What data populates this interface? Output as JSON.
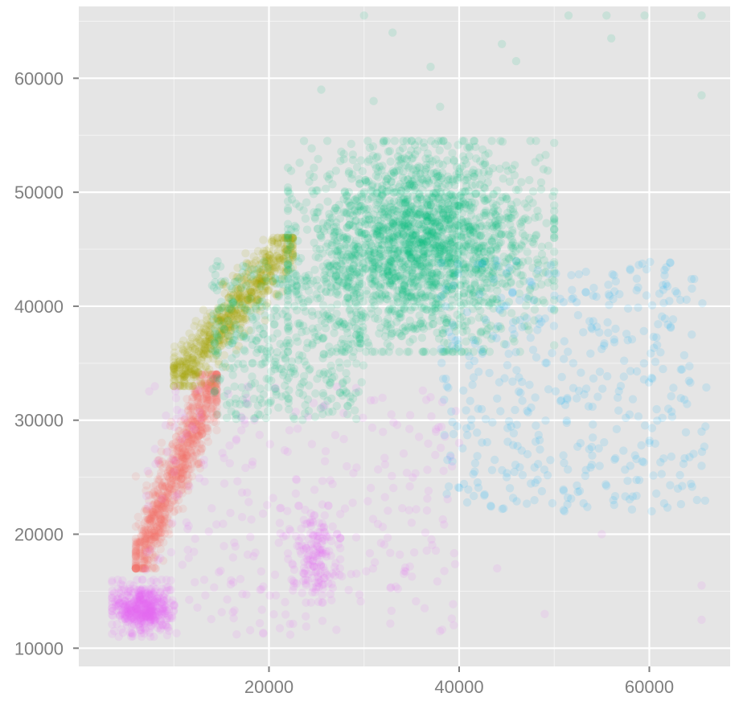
{
  "chart_data": {
    "type": "scatter",
    "title": "",
    "xlabel": "",
    "ylabel": "",
    "xlim": [
      0,
      68500
    ],
    "ylim": [
      8400,
      66300
    ],
    "x_ticks": [
      20000,
      40000,
      60000
    ],
    "x_tick_labels": [
      "20000",
      "40000",
      "60000"
    ],
    "y_ticks": [
      10000,
      20000,
      30000,
      40000,
      50000,
      60000
    ],
    "y_tick_labels": [
      "10000",
      "20000",
      "30000",
      "40000",
      "50000",
      "60000"
    ],
    "x_minor_grid": [
      10000,
      30000,
      50000
    ],
    "y_minor_grid": [
      15000,
      25000,
      35000,
      45000,
      55000,
      65000
    ],
    "grid": true,
    "legend": "none",
    "panel_background": "#e5e5e5",
    "grid_color": "#ffffff",
    "point_opacity": 0.12,
    "series": [
      {
        "color": "#F8766D",
        "clusters": [
          {
            "n": 900,
            "x_range": [
              6000,
              14500
            ],
            "y_range": [
              17000,
              34000
            ],
            "note_shape": "diagonal-band"
          }
        ],
        "points": [
          [
            8000,
            18000
          ],
          [
            9000,
            21000
          ],
          [
            10000,
            24000
          ],
          [
            11000,
            27000
          ],
          [
            12000,
            30000
          ],
          [
            13000,
            33000
          ],
          [
            9500,
            20000
          ],
          [
            11500,
            26000
          ],
          [
            10500,
            23000
          ],
          [
            12500,
            29000
          ]
        ]
      },
      {
        "color": "#A3A500",
        "clusters": [
          {
            "n": 700,
            "x_range": [
              10000,
              22500
            ],
            "y_range": [
              33000,
              46000
            ],
            "note_shape": "diagonal-band"
          }
        ],
        "points": [
          [
            12000,
            35000
          ],
          [
            14000,
            38000
          ],
          [
            16000,
            40000
          ],
          [
            18000,
            42000
          ],
          [
            20000,
            44000
          ],
          [
            15000,
            39000
          ],
          [
            17000,
            41500
          ],
          [
            19000,
            43000
          ]
        ]
      },
      {
        "color": "#00BF7D",
        "clusters": [
          {
            "n": 2200,
            "x_range": [
              22000,
              50000
            ],
            "y_range": [
              36000,
              54500
            ],
            "note_shape": "dense-cloud"
          },
          {
            "n": 450,
            "x_range": [
              14000,
              30000
            ],
            "y_range": [
              30000,
              44000
            ],
            "note_shape": "sparse"
          }
        ],
        "points": [
          [
            30000,
            65500
          ],
          [
            33000,
            64000
          ],
          [
            44500,
            63000
          ],
          [
            46000,
            61500
          ],
          [
            37000,
            61000
          ],
          [
            51500,
            65500
          ],
          [
            55500,
            65500
          ],
          [
            59500,
            65500
          ],
          [
            65500,
            65500
          ],
          [
            56000,
            63500
          ],
          [
            65500,
            58500
          ],
          [
            25500,
            59000
          ],
          [
            31000,
            58000
          ],
          [
            38000,
            57500
          ]
        ]
      },
      {
        "color": "#00B0F6",
        "clusters": [
          {
            "n": 420,
            "x_range": [
              38000,
              66000
            ],
            "y_range": [
              22000,
              44000
            ],
            "note_shape": "sparse"
          }
        ],
        "points": [
          [
            57000,
            33000
          ],
          [
            62000,
            31000
          ],
          [
            65500,
            29000
          ],
          [
            58000,
            26000
          ],
          [
            63000,
            24000
          ],
          [
            60000,
            28000
          ],
          [
            65500,
            26000
          ],
          [
            45000,
            25000
          ],
          [
            48000,
            32000
          ],
          [
            52000,
            35000
          ],
          [
            54000,
            38000
          ]
        ]
      },
      {
        "color": "#E76BF3",
        "clusters": [
          {
            "n": 500,
            "x_range": [
              3500,
              10000
            ],
            "y_range": [
              11000,
              16000
            ],
            "note_shape": "dense-cluster"
          },
          {
            "n": 170,
            "x_range": [
              22000,
              27500
            ],
            "y_range": [
              14000,
              22500
            ],
            "note_shape": "small-cluster"
          },
          {
            "n": 300,
            "x_range": [
              7000,
              40000
            ],
            "y_range": [
              11000,
              33000
            ],
            "note_shape": "sparse"
          }
        ],
        "points": [
          [
            65500,
            15500
          ],
          [
            65500,
            12500
          ],
          [
            55000,
            20000
          ],
          [
            49000,
            13000
          ],
          [
            35000,
            21000
          ],
          [
            40000,
            28000
          ],
          [
            44000,
            17000
          ]
        ]
      }
    ]
  }
}
